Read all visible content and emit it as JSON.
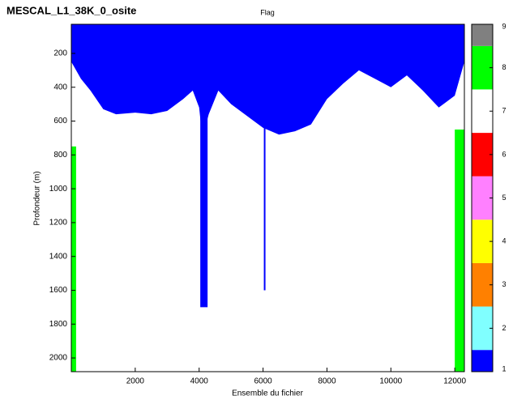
{
  "chart_data": {
    "type": "heatmap",
    "figure_title": "MESCAL_L1_38K_0_osite",
    "title": "Flag",
    "xlabel": "Ensemble du fichier",
    "ylabel": "Profondeur (m)",
    "xlim": [
      0,
      12300
    ],
    "xticks": [
      2000,
      4000,
      6000,
      8000,
      10000,
      12000
    ],
    "ylim": [
      28,
      2081
    ],
    "yticks": [
      200,
      400,
      600,
      800,
      1000,
      1200,
      1400,
      1600,
      1800,
      2000
    ],
    "y_reversed": true,
    "profile": {
      "x": [
        0,
        300,
        600,
        1000,
        1400,
        2000,
        2500,
        3000,
        3500,
        3800,
        4000,
        4100,
        4300,
        4600,
        5000,
        5500,
        6000,
        6500,
        7000,
        7500,
        8000,
        8500,
        9000,
        9500,
        10000,
        10500,
        11000,
        11500,
        12000,
        12300
      ],
      "values": [
        250,
        350,
        420,
        530,
        560,
        550,
        560,
        540,
        470,
        420,
        520,
        700,
        560,
        420,
        500,
        570,
        640,
        680,
        660,
        620,
        470,
        380,
        300,
        350,
        400,
        330,
        420,
        520,
        450,
        250
      ]
    },
    "spikes": {
      "x": [
        4150,
        6050
      ],
      "values": [
        1700,
        1600
      ]
    },
    "green_edges": {
      "x": [
        150,
        12000
      ],
      "values": [
        750,
        650
      ]
    },
    "colorbar": {
      "lim": [
        1,
        9
      ],
      "ticks": [
        1,
        2,
        3,
        4,
        5,
        6,
        7,
        8,
        9
      ],
      "colors": [
        "#0000ff",
        "#80ffff",
        "#ff8000",
        "#ffff00",
        "#ff80ff",
        "#ff0000",
        "#ffffff",
        "#00ff00",
        "#808080"
      ]
    }
  }
}
